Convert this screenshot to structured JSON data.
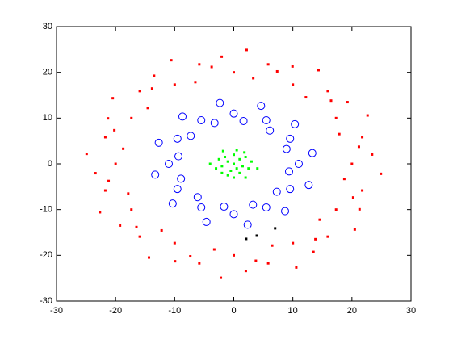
{
  "chart_data": {
    "type": "scatter",
    "xlim": [
      -30,
      30
    ],
    "ylim": [
      -30,
      30
    ],
    "xticks": [
      -30,
      -20,
      -10,
      0,
      10,
      20,
      30
    ],
    "yticks": [
      -30,
      -20,
      -10,
      0,
      10,
      20,
      30
    ],
    "box": true,
    "series": [
      {
        "color": "#ff0000",
        "marker": "point",
        "x": [
          20,
          21.18,
          17.86,
          17.32,
          16.47,
          12.21,
          10,
          7.35,
          3.3,
          0,
          -3.74,
          -6.5,
          -10,
          -13.82,
          -14.55,
          -17.32,
          -20.21,
          -18.71,
          -20,
          -21.18,
          -17.86,
          -17.32,
          -16.47,
          -12.21,
          -10,
          -7.35,
          -3.3,
          0,
          3.74,
          6.5,
          10,
          13.82,
          14.55,
          17.32,
          20.21,
          18.71,
          23.41,
          21.74,
          22.65,
          19.25,
          15.91,
          14.35,
          9.94,
          5.83,
          2.18,
          -2.04,
          -5.83,
          -10.58,
          -13.49,
          -15.91,
          -20.48,
          -21.29,
          -21.74,
          -24.9,
          -23.41,
          -21.74,
          -22.65,
          -19.25,
          -15.91,
          -14.35,
          -9.94,
          -5.83,
          -2.18,
          2.04,
          5.83,
          10.58,
          13.49,
          15.91,
          20.48,
          21.29,
          21.74,
          24.9
        ],
        "y": [
          0,
          3.74,
          6.5,
          10,
          13.82,
          14.55,
          17.32,
          20.21,
          18.71,
          20,
          21.18,
          17.86,
          17.32,
          16.47,
          12.21,
          10,
          7.35,
          3.3,
          0,
          -3.74,
          -6.5,
          -10,
          -13.82,
          -14.55,
          -17.32,
          -20.21,
          -18.71,
          -20,
          -21.18,
          -17.86,
          -17.32,
          -16.47,
          -12.21,
          -10,
          -7.35,
          -3.3,
          2.04,
          5.83,
          10.58,
          13.49,
          15.91,
          20.48,
          21.29,
          21.74,
          24.9,
          23.41,
          21.74,
          22.65,
          19.25,
          15.91,
          14.35,
          9.94,
          5.83,
          2.18,
          -2.04,
          -5.83,
          -10.58,
          -13.49,
          -15.91,
          -20.48,
          -21.29,
          -21.74,
          -24.9,
          -23.41,
          -21.74,
          -22.65,
          -19.25,
          -15.91,
          -14.35,
          -9.94,
          -5.83,
          -2.18
        ]
      },
      {
        "color": "#0000ff",
        "marker": "circle",
        "x": [
          11,
          13.3,
          8.93,
          9.53,
          10.34,
          6.11,
          5.5,
          4.62,
          1.65,
          0,
          -2.35,
          -3.25,
          -5.5,
          -8.68,
          -7.28,
          -9.53,
          -12.69,
          -9.36,
          -11,
          -13.3,
          -8.93,
          -9.53,
          -10.34,
          -6.11,
          -5.5,
          -4.62,
          -1.65,
          0,
          2.35,
          3.25,
          5.5,
          8.68,
          7.28,
          9.53,
          12.69,
          9.36
        ],
        "y": [
          0,
          2.35,
          3.25,
          5.5,
          8.68,
          7.28,
          9.53,
          12.69,
          9.36,
          11,
          13.3,
          8.93,
          9.53,
          10.34,
          6.11,
          5.5,
          4.62,
          1.65,
          0,
          -2.35,
          -3.25,
          -5.5,
          -8.68,
          -7.28,
          -9.53,
          -12.69,
          -9.36,
          -11,
          -13.3,
          -8.93,
          -9.53,
          -10.34,
          -6.11,
          -5.5,
          -4.62,
          -1.65
        ]
      },
      {
        "color": "#00ff00",
        "marker": "point",
        "x": [
          0,
          1,
          -1,
          0.5,
          -0.5,
          1.5,
          -1.5,
          2,
          -2,
          0,
          0.5,
          -2.5,
          2.5,
          -1,
          1,
          3,
          -3,
          0,
          1.8,
          -1.8,
          -4,
          4,
          2,
          -2
        ],
        "y": [
          0,
          1,
          0.5,
          -1,
          -1.5,
          -0.5,
          1.5,
          1.5,
          -0.5,
          2,
          3,
          1,
          -1,
          -2.5,
          -2,
          0.5,
          -1,
          -3,
          2.5,
          2.8,
          0,
          -1,
          -3,
          -2
        ]
      },
      {
        "color": "#000000",
        "marker": "point",
        "x": [
          2.1,
          3.9,
          7
        ],
        "y": [
          -16.4,
          -15.7,
          -14.1
        ]
      }
    ]
  }
}
